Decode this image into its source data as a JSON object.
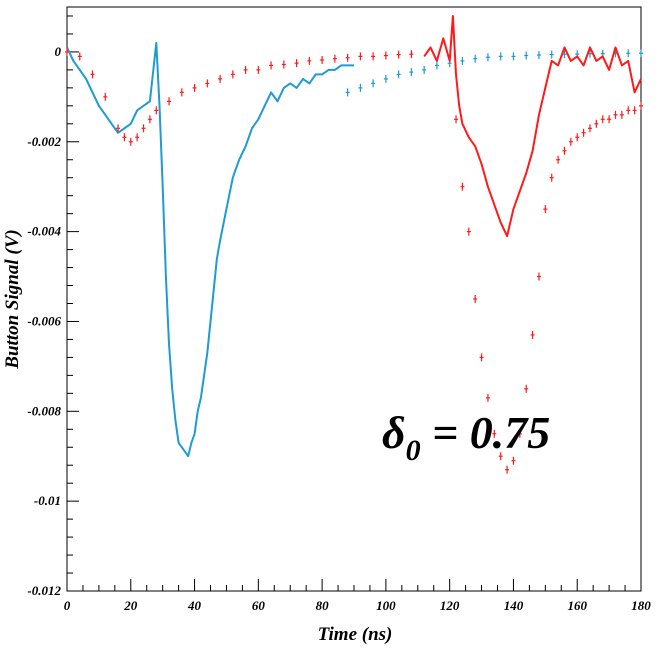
{
  "chart_data": {
    "type": "line",
    "title": "",
    "xlabel": "Time (ns)",
    "ylabel": "Button Signal (V)",
    "xlim": [
      0,
      180
    ],
    "ylim": [
      -0.012,
      0.001
    ],
    "x_ticks": [
      "0",
      "20",
      "40",
      "60",
      "80",
      "100",
      "120",
      "140",
      "160",
      "180"
    ],
    "y_ticks": [
      "0",
      "-0.002",
      "-0.004",
      "-0.006",
      "-0.008",
      "-0.01",
      "-0.012"
    ],
    "annotation": {
      "symbol": "δ",
      "subscript": "0",
      "text": " = 0.75"
    },
    "colors": {
      "blue": "#1e9bd0",
      "red": "#ff1a1a"
    },
    "series": [
      {
        "style": "line",
        "color": "#1e9bd0",
        "x": [
          0,
          2,
          4,
          6,
          8,
          10,
          12,
          14,
          16,
          18,
          20,
          22,
          24,
          26,
          28,
          29,
          30,
          31,
          32,
          33,
          34,
          35,
          36,
          37,
          38,
          39,
          40,
          41,
          42,
          43,
          44,
          45,
          46,
          47,
          48,
          50,
          52,
          54,
          56,
          58,
          60,
          62,
          64,
          66,
          68,
          70,
          72,
          74,
          76,
          78,
          80,
          82,
          84,
          86,
          88,
          90
        ],
        "y": [
          0.0001,
          -0.0002,
          -0.0004,
          -0.0006,
          -0.0009,
          -0.0012,
          -0.0014,
          -0.0016,
          -0.0018,
          -0.0017,
          -0.0016,
          -0.0013,
          -0.0012,
          -0.0011,
          0.0002,
          -0.0012,
          -0.003,
          -0.005,
          -0.0065,
          -0.0075,
          -0.0082,
          -0.0087,
          -0.0088,
          -0.0089,
          -0.009,
          -0.0087,
          -0.0085,
          -0.008,
          -0.0077,
          -0.0072,
          -0.0067,
          -0.006,
          -0.0053,
          -0.0046,
          -0.0042,
          -0.0035,
          -0.0028,
          -0.0024,
          -0.0021,
          -0.0017,
          -0.0015,
          -0.0012,
          -0.0009,
          -0.0011,
          -0.0008,
          -0.0007,
          -0.0008,
          -0.0006,
          -0.0007,
          -0.0005,
          -0.0005,
          -0.0004,
          -0.0004,
          -0.0003,
          -0.0003,
          -0.0003
        ]
      },
      {
        "style": "points",
        "color": "#1e9bd0",
        "x": [
          88,
          92,
          96,
          100,
          104,
          108,
          112,
          116,
          120,
          124,
          128,
          132,
          136,
          140,
          144,
          148,
          152,
          156,
          160,
          164,
          168,
          172,
          176,
          180
        ],
        "y": [
          -0.0009,
          -0.0008,
          -0.0007,
          -0.0006,
          -0.0005,
          -0.00045,
          -0.0004,
          -0.0003,
          -0.00025,
          -0.0002,
          -0.00015,
          -0.00012,
          -0.0001,
          -0.0001,
          -8e-05,
          -7e-05,
          -6e-05,
          -5e-05,
          -5e-05,
          -4e-05,
          -4e-05,
          -3e-05,
          -3e-05,
          -3e-05
        ]
      },
      {
        "style": "points",
        "color": "#ff1a1a",
        "x": [
          0,
          4,
          8,
          12,
          16,
          18,
          20,
          22,
          24,
          26,
          28,
          32,
          36,
          40,
          44,
          48,
          52,
          56,
          60,
          64,
          68,
          72,
          76,
          80,
          84,
          88,
          92,
          96,
          100,
          104,
          108
        ],
        "y": [
          0,
          -0.0001,
          -0.0005,
          -0.001,
          -0.0017,
          -0.0019,
          -0.002,
          -0.0019,
          -0.0017,
          -0.0015,
          -0.0013,
          -0.0011,
          -0.0009,
          -0.0008,
          -0.0007,
          -0.0006,
          -0.0005,
          -0.0004,
          -0.0004,
          -0.0003,
          -0.00028,
          -0.00025,
          -0.0002,
          -0.00018,
          -0.00015,
          -0.00013,
          -0.0001,
          -0.0001,
          -8e-05,
          -6e-05,
          -5e-05
        ]
      },
      {
        "style": "line",
        "color": "#ff1a1a",
        "x": [
          112,
          114,
          116,
          118,
          120,
          121,
          122,
          123,
          124,
          126,
          128,
          130,
          132,
          134,
          136,
          138,
          140,
          142,
          144,
          146,
          148,
          150,
          152,
          154,
          156,
          158,
          160,
          162,
          164,
          166,
          168,
          170,
          172,
          174,
          176,
          178,
          180
        ],
        "y": [
          -0.0001,
          0.0001,
          -0.0002,
          0.0003,
          -0.0002,
          0.0008,
          -0.0005,
          -0.0012,
          -0.0016,
          -0.0019,
          -0.0021,
          -0.0025,
          -0.003,
          -0.0034,
          -0.0038,
          -0.0041,
          -0.0035,
          -0.0031,
          -0.0027,
          -0.0022,
          -0.0014,
          -0.0008,
          -0.0002,
          -0.0003,
          0.0001,
          -0.0002,
          -0.0001,
          -0.0003,
          0.0001,
          -0.0002,
          -0.0001,
          -0.0004,
          0.0001,
          -0.0003,
          -0.0002,
          -0.0009,
          -0.0006
        ]
      },
      {
        "style": "points",
        "color": "#ff1a1a",
        "x": [
          122,
          124,
          126,
          128,
          130,
          132,
          134,
          136,
          138,
          140,
          142,
          144,
          146,
          148,
          150,
          152,
          154,
          156,
          158,
          160,
          162,
          164,
          166,
          168,
          170,
          172,
          174,
          176,
          178,
          180
        ],
        "y": [
          -0.0015,
          -0.003,
          -0.004,
          -0.0055,
          -0.0068,
          -0.0077,
          -0.0085,
          -0.009,
          -0.0093,
          -0.0091,
          -0.0085,
          -0.0075,
          -0.0063,
          -0.005,
          -0.0035,
          -0.0028,
          -0.0024,
          -0.0022,
          -0.002,
          -0.0019,
          -0.0018,
          -0.0017,
          -0.0016,
          -0.0015,
          -0.0015,
          -0.0014,
          -0.0014,
          -0.0013,
          -0.0013,
          -0.0012
        ]
      }
    ]
  }
}
